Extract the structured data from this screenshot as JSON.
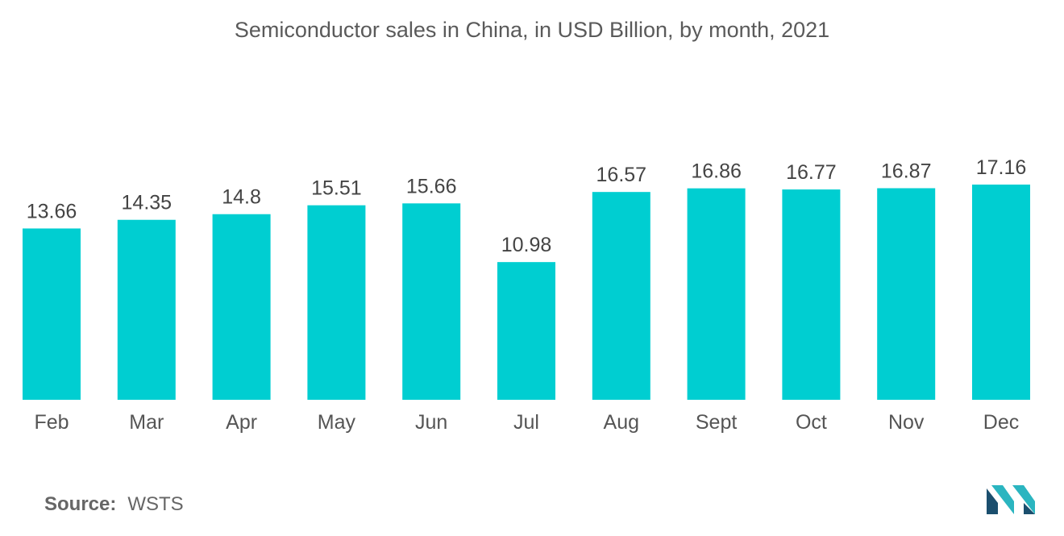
{
  "colors": {
    "bar": "#00CED1",
    "logo_dark": "#1B4F6E",
    "logo_light": "#2BB5C0"
  },
  "icons": {
    "logo": "mordor-intelligence-logo"
  },
  "source": {
    "label": "Source:",
    "value": "WSTS"
  },
  "chart_data": {
    "type": "bar",
    "title": "Semiconductor sales in China, in USD Billion, by month, 2021",
    "xlabel": "",
    "ylabel": "",
    "ylim": [
      0,
      17.16
    ],
    "grid": false,
    "categories": [
      "Feb",
      "Mar",
      "Apr",
      "May",
      "Jun",
      "Jul",
      "Aug",
      "Sept",
      "Oct",
      "Nov",
      "Dec"
    ],
    "values": [
      13.66,
      14.35,
      14.8,
      15.51,
      15.66,
      10.98,
      16.57,
      16.86,
      16.77,
      16.87,
      17.16
    ],
    "value_labels": [
      "13.66",
      "14.35",
      "14.8",
      "15.51",
      "15.66",
      "10.98",
      "16.57",
      "16.86",
      "16.77",
      "16.87",
      "17.16"
    ]
  }
}
